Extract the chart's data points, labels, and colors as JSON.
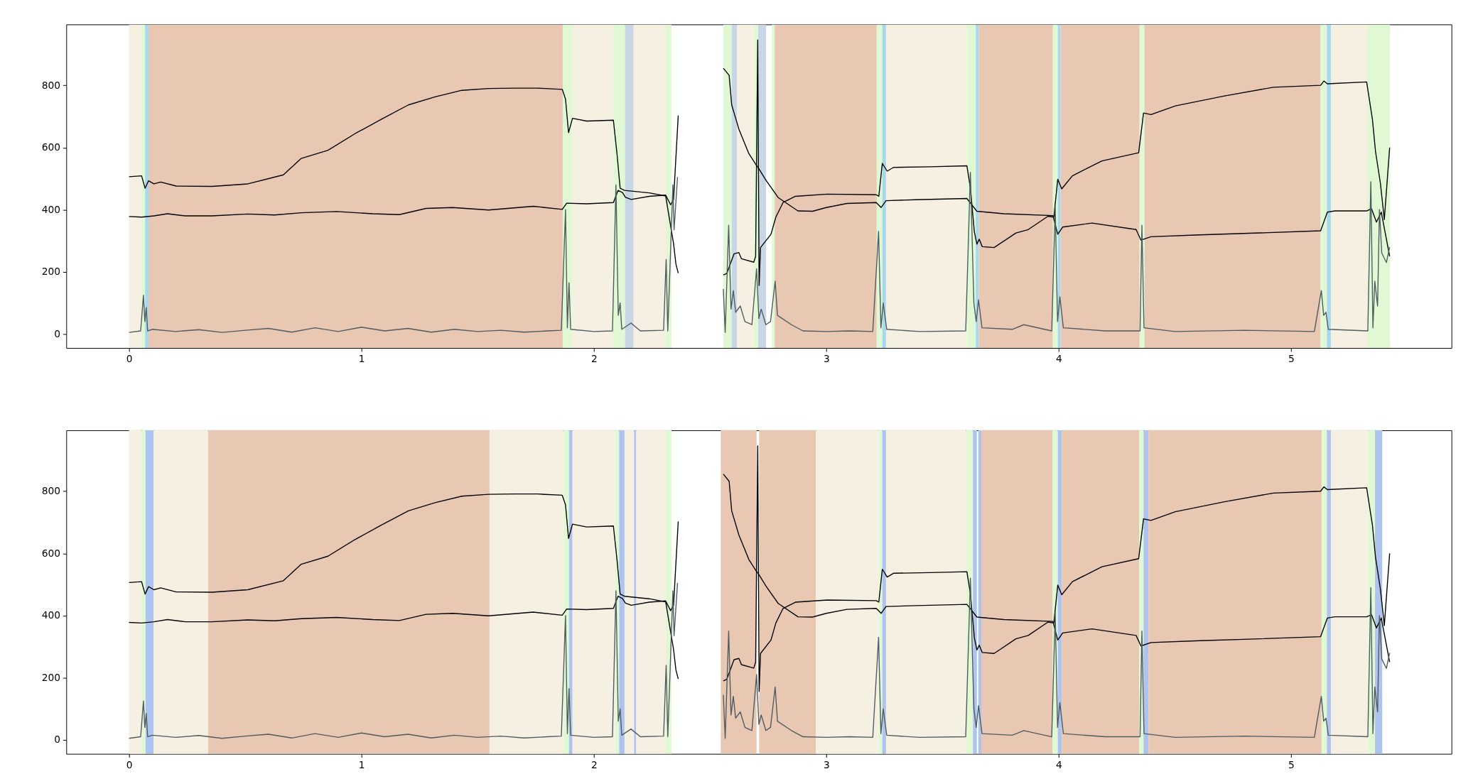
{
  "chart_data": [
    {
      "type": "line",
      "xlim": [
        -0.27,
        5.69
      ],
      "xticks": [
        0,
        1,
        2,
        3,
        4,
        5
      ],
      "ylim": [
        -45,
        996
      ],
      "yticks": [
        0,
        200,
        400,
        600,
        800
      ],
      "series": [
        {
          "color": "#000000",
          "x": [
            0,
            0.054,
            0.069,
            0.084,
            0.107,
            0.136,
            0.203,
            0.357,
            0.511,
            0.664,
            0.741,
            0.856,
            0.971,
            1.086,
            1.202,
            1.317,
            1.432,
            1.547,
            1.662,
            1.758,
            1.864,
            1.878,
            1.891,
            1.908,
            1.969,
            2.084,
            2.1,
            2.113,
            2.132,
            2.238,
            2.309,
            2.324,
            2.343,
            2.353,
            2.363,
            2.45,
            2.557,
            2.582,
            2.593,
            2.624,
            2.667,
            2.698,
            2.709,
            2.741,
            2.793,
            2.878,
            2.941,
            3.0,
            3.089,
            3.215,
            3.236,
            3.257,
            3.384,
            3.605,
            3.627,
            3.648,
            3.764,
            3.975,
            3.996,
            4.017,
            4.143,
            4.333,
            4.354,
            4.397,
            4.608,
            4.819,
            5.127,
            5.156,
            5.188,
            5.325,
            5.346,
            5.367,
            5.388,
            5.424
          ],
          "values": [
            506,
            509,
            469,
            493,
            483,
            489,
            476,
            475,
            483,
            512,
            565,
            591,
            644,
            691,
            737,
            763,
            784,
            790,
            791,
            791,
            787,
            756,
            648,
            694,
            685,
            688,
            576,
            469,
            462,
            454,
            444,
            376,
            290,
            225,
            196,
            null,
            855,
            832,
            737,
            659,
            580,
            544,
            533,
            494,
            439,
            396,
            395,
            407,
            420,
            423,
            407,
            429,
            432,
            436,
            415,
            395,
            387,
            381,
            321,
            344,
            357,
            336,
            302,
            313,
            319,
            324,
            332,
            392,
            396,
            396,
            403,
            360,
            392,
            250
          ]
        },
        {
          "color": "#000000",
          "x": [
            0,
            0.054,
            0.107,
            0.165,
            0.242,
            0.357,
            0.511,
            0.626,
            0.741,
            0.894,
            1.048,
            1.163,
            1.278,
            1.393,
            1.547,
            1.739,
            1.864,
            1.883,
            1.969,
            2.084,
            2.104,
            2.123,
            2.136,
            2.161,
            2.238,
            2.309,
            2.33,
            2.343,
            2.363,
            2.45,
            2.557,
            2.572,
            2.603,
            2.624,
            2.635,
            2.688,
            2.696,
            2.705,
            2.711,
            2.717,
            2.762,
            2.783,
            2.814,
            2.867,
            3.004,
            3.215,
            3.226,
            3.241,
            3.262,
            3.289,
            3.447,
            3.605,
            3.62,
            3.637,
            3.648,
            3.658,
            3.671,
            3.722,
            3.816,
            3.869,
            3.954,
            3.979,
            3.996,
            4.013,
            4.059,
            4.186,
            4.344,
            4.365,
            4.397,
            4.502,
            4.713,
            4.924,
            5.127,
            5.141,
            5.156,
            5.325,
            5.35,
            5.363,
            5.384,
            5.401,
            5.424
          ],
          "values": [
            378,
            376,
            380,
            387,
            380,
            380,
            386,
            383,
            390,
            394,
            387,
            384,
            404,
            407,
            399,
            411,
            401,
            421,
            419,
            423,
            462,
            455,
            440,
            433,
            443,
            447,
            416,
            433,
            703,
            null,
            190,
            195,
            258,
            262,
            242,
            231,
            250,
            946,
            156,
            278,
            321,
            376,
            423,
            443,
            450,
            448,
            443,
            549,
            524,
            536,
            538,
            541,
            470,
            329,
            289,
            305,
            281,
            278,
            325,
            336,
            379,
            376,
            498,
            467,
            509,
            557,
            583,
            711,
            706,
            734,
            766,
            794,
            800,
            814,
            805,
            811,
            690,
            588,
            486,
            368,
            600
          ]
        },
        {
          "color": "#4f5b60",
          "x": [
            0,
            0.05,
            0.062,
            0.068,
            0.074,
            0.08,
            0.1,
            0.2,
            0.3,
            0.4,
            0.5,
            0.6,
            0.7,
            0.8,
            0.9,
            1.0,
            1.1,
            1.2,
            1.3,
            1.4,
            1.5,
            1.6,
            1.7,
            1.8,
            1.86,
            1.878,
            1.886,
            1.893,
            1.9,
            2.0,
            2.08,
            2.095,
            2.105,
            2.113,
            2.12,
            2.16,
            2.2,
            2.3,
            2.311,
            2.318,
            2.34,
            2.345,
            2.36,
            2.45,
            2.557,
            2.565,
            2.58,
            2.59,
            2.6,
            2.61,
            2.63,
            2.65,
            2.68,
            2.7,
            2.71,
            2.72,
            2.74,
            2.76,
            2.78,
            2.79,
            2.85,
            2.9,
            3.0,
            3.1,
            3.2,
            3.225,
            3.235,
            3.245,
            3.26,
            3.4,
            3.6,
            3.62,
            3.635,
            3.645,
            3.655,
            3.67,
            3.8,
            3.85,
            3.97,
            3.985,
            3.995,
            4.005,
            4.02,
            4.2,
            4.35,
            4.358,
            4.367,
            4.5,
            4.8,
            5.1,
            5.13,
            5.14,
            5.15,
            5.16,
            5.33,
            5.343,
            5.352,
            5.36,
            5.372,
            5.38,
            5.39,
            5.41,
            5.424
          ],
          "values": [
            5,
            10,
            125,
            40,
            85,
            10,
            15,
            8,
            14,
            5,
            12,
            18,
            6,
            20,
            8,
            22,
            10,
            18,
            6,
            15,
            8,
            12,
            6,
            10,
            12,
            400,
            20,
            165,
            15,
            8,
            10,
            480,
            60,
            100,
            15,
            35,
            10,
            12,
            240,
            10,
            480,
            335,
            505,
            null,
            145,
            5,
            350,
            80,
            140,
            70,
            90,
            40,
            30,
            210,
            50,
            80,
            30,
            40,
            170,
            60,
            30,
            10,
            8,
            10,
            8,
            330,
            20,
            100,
            15,
            8,
            10,
            520,
            100,
            40,
            110,
            20,
            15,
            30,
            10,
            410,
            40,
            120,
            20,
            10,
            10,
            350,
            20,
            8,
            12,
            8,
            140,
            60,
            70,
            15,
            10,
            490,
            20,
            170,
            90,
            400,
            260,
            230,
            280
          ]
        }
      ],
      "bands": [
        {
          "axis": "x",
          "from": 0,
          "to": 0.054,
          "color": "#f5f0e1"
        },
        {
          "axis": "x",
          "from": 0.054,
          "to": 0.069,
          "color": "#e0f9d4"
        },
        {
          "axis": "x",
          "from": 0.069,
          "to": 0.084,
          "color": "#a8d8f0"
        },
        {
          "axis": "x",
          "from": 0.084,
          "to": 1.866,
          "color": "#e8c7b3"
        },
        {
          "axis": "x",
          "from": 1.866,
          "to": 1.908,
          "color": "#e0f9d4"
        },
        {
          "axis": "x",
          "from": 1.908,
          "to": 2.083,
          "color": "#f5f0e1"
        },
        {
          "axis": "x",
          "from": 2.083,
          "to": 2.134,
          "color": "#e0f9d4"
        },
        {
          "axis": "x",
          "from": 2.134,
          "to": 2.171,
          "color": "#c8d6e6"
        },
        {
          "axis": "x",
          "from": 2.171,
          "to": 2.309,
          "color": "#f5f0e1"
        },
        {
          "axis": "x",
          "from": 2.309,
          "to": 2.334,
          "color": "#e0f9d4"
        },
        {
          "axis": "x",
          "from": 2.557,
          "to": 2.593,
          "color": "#e0f9d4"
        },
        {
          "axis": "x",
          "from": 2.593,
          "to": 2.616,
          "color": "#c8d6e6"
        },
        {
          "axis": "x",
          "from": 2.616,
          "to": 2.688,
          "color": "#f5f0e1"
        },
        {
          "axis": "x",
          "from": 2.688,
          "to": 2.707,
          "color": "#e0f9d4"
        },
        {
          "axis": "x",
          "from": 2.707,
          "to": 2.741,
          "color": "#c8d6e6"
        },
        {
          "axis": "x",
          "from": 2.766,
          "to": 2.778,
          "color": "#e0f9d4"
        },
        {
          "axis": "x",
          "from": 2.778,
          "to": 3.217,
          "color": "#e8c7b3"
        },
        {
          "axis": "x",
          "from": 3.217,
          "to": 3.241,
          "color": "#e0f9d4"
        },
        {
          "axis": "x",
          "from": 3.241,
          "to": 3.257,
          "color": "#a8d8f0"
        },
        {
          "axis": "x",
          "from": 3.257,
          "to": 3.605,
          "color": "#f5f0e1"
        },
        {
          "axis": "x",
          "from": 3.605,
          "to": 3.643,
          "color": "#e0f9d4"
        },
        {
          "axis": "x",
          "from": 3.643,
          "to": 3.656,
          "color": "#a8d8f0"
        },
        {
          "axis": "x",
          "from": 3.656,
          "to": 3.975,
          "color": "#e8c7b3"
        },
        {
          "axis": "x",
          "from": 3.975,
          "to": 3.996,
          "color": "#e0f9d4"
        },
        {
          "axis": "x",
          "from": 3.996,
          "to": 4.008,
          "color": "#a8d8f0"
        },
        {
          "axis": "x",
          "from": 4.008,
          "to": 4.348,
          "color": "#e8c7b3"
        },
        {
          "axis": "x",
          "from": 4.348,
          "to": 4.369,
          "color": "#e0f9d4"
        },
        {
          "axis": "x",
          "from": 4.369,
          "to": 5.127,
          "color": "#e8c7b3"
        },
        {
          "axis": "x",
          "from": 5.127,
          "to": 5.154,
          "color": "#e0f9d4"
        },
        {
          "axis": "x",
          "from": 5.154,
          "to": 5.171,
          "color": "#a8d8f0"
        },
        {
          "axis": "x",
          "from": 5.171,
          "to": 5.327,
          "color": "#f5f0e1"
        },
        {
          "axis": "x",
          "from": 5.327,
          "to": 5.426,
          "color": "#e0f9d4"
        }
      ]
    },
    {
      "type": "line",
      "xlim": [
        -0.27,
        5.69
      ],
      "xticks": [
        0,
        1,
        2,
        3,
        4,
        5
      ],
      "ylim": [
        -45,
        996
      ],
      "yticks": [
        0,
        200,
        400,
        600,
        800
      ],
      "series": [
        {
          "color": "#000000",
          "x": [
            0,
            0.054,
            0.069,
            0.084,
            0.107,
            0.136,
            0.203,
            0.357,
            0.511,
            0.664,
            0.741,
            0.856,
            0.971,
            1.086,
            1.202,
            1.317,
            1.432,
            1.547,
            1.662,
            1.758,
            1.864,
            1.878,
            1.891,
            1.908,
            1.969,
            2.084,
            2.1,
            2.113,
            2.132,
            2.238,
            2.309,
            2.324,
            2.343,
            2.353,
            2.363,
            2.45,
            2.557,
            2.582,
            2.593,
            2.624,
            2.667,
            2.698,
            2.709,
            2.741,
            2.793,
            2.878,
            2.941,
            3.0,
            3.089,
            3.215,
            3.236,
            3.257,
            3.384,
            3.605,
            3.627,
            3.648,
            3.764,
            3.975,
            3.996,
            4.017,
            4.143,
            4.333,
            4.354,
            4.397,
            4.608,
            4.819,
            5.127,
            5.156,
            5.188,
            5.325,
            5.346,
            5.367,
            5.388,
            5.424
          ],
          "values": [
            506,
            509,
            469,
            493,
            483,
            489,
            476,
            475,
            483,
            512,
            565,
            591,
            644,
            691,
            737,
            763,
            784,
            790,
            791,
            791,
            787,
            756,
            648,
            694,
            685,
            688,
            576,
            469,
            462,
            454,
            444,
            376,
            290,
            225,
            196,
            null,
            855,
            832,
            737,
            659,
            580,
            544,
            533,
            494,
            439,
            396,
            395,
            407,
            420,
            423,
            407,
            429,
            432,
            436,
            415,
            395,
            387,
            381,
            321,
            344,
            357,
            336,
            302,
            313,
            319,
            324,
            332,
            392,
            396,
            396,
            403,
            360,
            392,
            250
          ]
        },
        {
          "color": "#000000",
          "x": [
            0,
            0.054,
            0.107,
            0.165,
            0.242,
            0.357,
            0.511,
            0.626,
            0.741,
            0.894,
            1.048,
            1.163,
            1.278,
            1.393,
            1.547,
            1.739,
            1.864,
            1.883,
            1.969,
            2.084,
            2.104,
            2.123,
            2.136,
            2.161,
            2.238,
            2.309,
            2.33,
            2.343,
            2.363,
            2.45,
            2.557,
            2.572,
            2.603,
            2.624,
            2.635,
            2.688,
            2.696,
            2.705,
            2.711,
            2.717,
            2.762,
            2.783,
            2.814,
            2.867,
            3.004,
            3.215,
            3.226,
            3.241,
            3.262,
            3.289,
            3.447,
            3.605,
            3.62,
            3.637,
            3.648,
            3.658,
            3.671,
            3.722,
            3.816,
            3.869,
            3.954,
            3.979,
            3.996,
            4.013,
            4.059,
            4.186,
            4.344,
            4.365,
            4.397,
            4.502,
            4.713,
            4.924,
            5.127,
            5.141,
            5.156,
            5.325,
            5.35,
            5.363,
            5.384,
            5.401,
            5.424
          ],
          "values": [
            378,
            376,
            380,
            387,
            380,
            380,
            386,
            383,
            390,
            394,
            387,
            384,
            404,
            407,
            399,
            411,
            401,
            421,
            419,
            423,
            462,
            455,
            440,
            433,
            443,
            447,
            416,
            433,
            703,
            null,
            190,
            195,
            258,
            262,
            242,
            231,
            250,
            946,
            156,
            278,
            321,
            376,
            423,
            443,
            450,
            448,
            443,
            549,
            524,
            536,
            538,
            541,
            470,
            329,
            289,
            305,
            281,
            278,
            325,
            336,
            379,
            376,
            498,
            467,
            509,
            557,
            583,
            711,
            706,
            734,
            766,
            794,
            800,
            814,
            805,
            811,
            690,
            588,
            486,
            368,
            600
          ]
        },
        {
          "color": "#4f5b60",
          "x": [
            0,
            0.05,
            0.062,
            0.068,
            0.074,
            0.08,
            0.1,
            0.2,
            0.3,
            0.4,
            0.5,
            0.6,
            0.7,
            0.8,
            0.9,
            1.0,
            1.1,
            1.2,
            1.3,
            1.4,
            1.5,
            1.6,
            1.7,
            1.8,
            1.86,
            1.878,
            1.886,
            1.893,
            1.9,
            2.0,
            2.08,
            2.095,
            2.105,
            2.113,
            2.12,
            2.16,
            2.2,
            2.3,
            2.311,
            2.318,
            2.34,
            2.345,
            2.36,
            2.45,
            2.557,
            2.565,
            2.58,
            2.59,
            2.6,
            2.61,
            2.63,
            2.65,
            2.68,
            2.7,
            2.71,
            2.72,
            2.74,
            2.76,
            2.78,
            2.79,
            2.85,
            2.9,
            3.0,
            3.1,
            3.2,
            3.225,
            3.235,
            3.245,
            3.26,
            3.4,
            3.6,
            3.62,
            3.635,
            3.645,
            3.655,
            3.67,
            3.8,
            3.85,
            3.97,
            3.985,
            3.995,
            4.005,
            4.02,
            4.2,
            4.35,
            4.358,
            4.367,
            4.5,
            4.8,
            5.1,
            5.13,
            5.14,
            5.15,
            5.16,
            5.33,
            5.343,
            5.352,
            5.36,
            5.372,
            5.38,
            5.39,
            5.41,
            5.424
          ],
          "values": [
            5,
            10,
            125,
            40,
            85,
            10,
            15,
            8,
            14,
            5,
            12,
            18,
            6,
            20,
            8,
            22,
            10,
            18,
            6,
            15,
            8,
            12,
            6,
            10,
            12,
            400,
            20,
            165,
            15,
            8,
            10,
            480,
            60,
            100,
            15,
            35,
            10,
            12,
            240,
            10,
            480,
            335,
            505,
            null,
            145,
            5,
            350,
            80,
            140,
            70,
            90,
            40,
            30,
            210,
            50,
            80,
            30,
            40,
            170,
            60,
            30,
            10,
            8,
            10,
            8,
            330,
            20,
            100,
            15,
            8,
            10,
            520,
            100,
            40,
            110,
            20,
            15,
            30,
            10,
            410,
            40,
            120,
            20,
            10,
            10,
            350,
            20,
            8,
            12,
            8,
            140,
            60,
            70,
            15,
            10,
            490,
            20,
            170,
            90,
            400,
            260,
            230,
            280
          ]
        }
      ],
      "bands": [
        {
          "axis": "x",
          "from": 0,
          "to": 0.054,
          "color": "#f5f0e1"
        },
        {
          "axis": "x",
          "from": 0.054,
          "to": 0.071,
          "color": "#e0f9d4"
        },
        {
          "axis": "x",
          "from": 0.071,
          "to": 0.106,
          "color": "#aec3ee"
        },
        {
          "axis": "x",
          "from": 0.106,
          "to": 0.34,
          "color": "#f5f0e1"
        },
        {
          "axis": "x",
          "from": 0.34,
          "to": 1.551,
          "color": "#e8c7b3"
        },
        {
          "axis": "x",
          "from": 1.551,
          "to": 1.868,
          "color": "#f5f0e1"
        },
        {
          "axis": "x",
          "from": 1.868,
          "to": 1.893,
          "color": "#e0f9d4"
        },
        {
          "axis": "x",
          "from": 1.893,
          "to": 1.908,
          "color": "#aec3ee"
        },
        {
          "axis": "x",
          "from": 1.908,
          "to": 2.092,
          "color": "#f5f0e1"
        },
        {
          "axis": "x",
          "from": 2.092,
          "to": 2.109,
          "color": "#e0f9d4"
        },
        {
          "axis": "x",
          "from": 2.109,
          "to": 2.132,
          "color": "#aec3ee"
        },
        {
          "axis": "x",
          "from": 2.132,
          "to": 2.173,
          "color": "#f5f0e1"
        },
        {
          "axis": "x",
          "from": 2.173,
          "to": 2.182,
          "color": "#aec3ee"
        },
        {
          "axis": "x",
          "from": 2.182,
          "to": 2.309,
          "color": "#f5f0e1"
        },
        {
          "axis": "x",
          "from": 2.309,
          "to": 2.334,
          "color": "#e0f9d4"
        },
        {
          "axis": "x",
          "from": 2.546,
          "to": 2.7,
          "color": "#e8c7b3"
        },
        {
          "axis": "x",
          "from": 2.711,
          "to": 2.956,
          "color": "#e8c7b3"
        },
        {
          "axis": "x",
          "from": 2.956,
          "to": 3.226,
          "color": "#f5f0e1"
        },
        {
          "axis": "x",
          "from": 3.226,
          "to": 3.241,
          "color": "#e0f9d4"
        },
        {
          "axis": "x",
          "from": 3.241,
          "to": 3.257,
          "color": "#aec3ee"
        },
        {
          "axis": "x",
          "from": 3.257,
          "to": 3.601,
          "color": "#f5f0e1"
        },
        {
          "axis": "x",
          "from": 3.601,
          "to": 3.631,
          "color": "#e0f9d4"
        },
        {
          "axis": "x",
          "from": 3.631,
          "to": 3.648,
          "color": "#aec3ee"
        },
        {
          "axis": "x",
          "from": 3.654,
          "to": 3.667,
          "color": "#aec3ee"
        },
        {
          "axis": "x",
          "from": 3.667,
          "to": 3.973,
          "color": "#e8c7b3"
        },
        {
          "axis": "x",
          "from": 3.973,
          "to": 3.996,
          "color": "#e0f9d4"
        },
        {
          "axis": "x",
          "from": 3.996,
          "to": 4.013,
          "color": "#aec3ee"
        },
        {
          "axis": "x",
          "from": 4.013,
          "to": 4.346,
          "color": "#e8c7b3"
        },
        {
          "axis": "x",
          "from": 4.346,
          "to": 4.365,
          "color": "#e0f9d4"
        },
        {
          "axis": "x",
          "from": 4.365,
          "to": 4.386,
          "color": "#aec3ee"
        },
        {
          "axis": "x",
          "from": 4.386,
          "to": 5.131,
          "color": "#e8c7b3"
        },
        {
          "axis": "x",
          "from": 5.131,
          "to": 5.154,
          "color": "#e0f9d4"
        },
        {
          "axis": "x",
          "from": 5.154,
          "to": 5.171,
          "color": "#aec3ee"
        },
        {
          "axis": "x",
          "from": 5.171,
          "to": 5.331,
          "color": "#f5f0e1"
        },
        {
          "axis": "x",
          "from": 5.331,
          "to": 5.361,
          "color": "#e0f9d4"
        },
        {
          "axis": "x",
          "from": 5.361,
          "to": 5.392,
          "color": "#aec3ee"
        }
      ]
    }
  ]
}
